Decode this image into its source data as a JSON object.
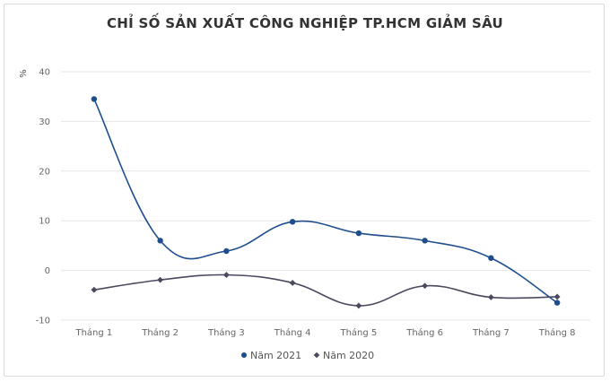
{
  "chart_data": {
    "type": "line",
    "title": "CHỈ SỐ SẢN XUẤT CÔNG NGHIỆP TP.HCM GIẢM SÂU",
    "ylabel": "%",
    "xlabel": "",
    "ylim": [
      -10,
      40
    ],
    "yticks": [
      "40",
      "30",
      "20",
      "10",
      "0",
      "-10"
    ],
    "categories": [
      "Tháng 1",
      "Tháng 2",
      "Tháng 3",
      "Tháng 4",
      "Tháng 5",
      "Tháng 6",
      "Tháng 7",
      "Tháng 8"
    ],
    "grid": true,
    "legend_position": "bottom",
    "series": [
      {
        "name": "Năm 2021",
        "marker": "circle",
        "color": "#1f4e8c",
        "values": [
          34.5,
          6.0,
          3.9,
          9.8,
          7.5,
          6.0,
          2.5,
          -6.5
        ]
      },
      {
        "name": "Năm 2020",
        "marker": "diamond",
        "color": "#4a4a5e",
        "values": [
          -3.9,
          -1.9,
          -0.9,
          -2.5,
          -7.1,
          -3.1,
          -5.4,
          -5.3
        ]
      }
    ]
  }
}
